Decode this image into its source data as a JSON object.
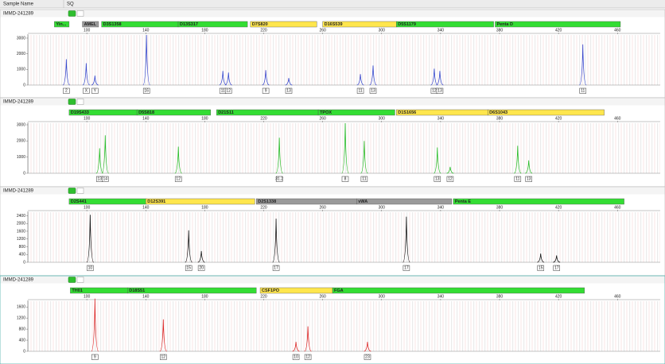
{
  "header": {
    "columns": [
      "Sample Name",
      "SQ"
    ]
  },
  "xlim": [
    60,
    489
  ],
  "xticks": [
    100,
    140,
    180,
    220,
    260,
    300,
    340,
    380,
    420,
    460
  ],
  "panels": [
    {
      "sample": "IMMD-241289",
      "color": "#3344cc",
      "ylim": [
        0,
        3100
      ],
      "yticks": [
        0,
        1000,
        2000,
        3000
      ],
      "markers": [
        {
          "name": "Yin...",
          "start": 78,
          "end": 88,
          "color": "#33dd33"
        },
        {
          "name": "AMEL",
          "start": 97,
          "end": 108,
          "color": "#9a9a9a"
        },
        {
          "name": "D3S1358",
          "start": 110,
          "end": 162,
          "color": "#33dd33"
        },
        {
          "name": "D13S317",
          "start": 162,
          "end": 209,
          "color": "#33dd33"
        },
        {
          "name": "D7S820",
          "start": 211,
          "end": 256,
          "color": "#ffe64d"
        },
        {
          "name": "D16S539",
          "start": 260,
          "end": 310,
          "color": "#ffe64d"
        },
        {
          "name": "D5S1179",
          "start": 310,
          "end": 376,
          "color": "#33dd33"
        },
        {
          "name": "Penta D",
          "start": 377,
          "end": 462,
          "color": "#33dd33"
        }
      ],
      "peaks": [
        {
          "size": 86.1,
          "height": 1650,
          "allele": "2"
        },
        {
          "size": 99.6,
          "height": 1400,
          "allele": "X"
        },
        {
          "size": 105.5,
          "height": 600,
          "allele": "Y"
        },
        {
          "size": 140.5,
          "height": 3200,
          "allele": "16"
        },
        {
          "size": 192.3,
          "height": 900,
          "allele": "11"
        },
        {
          "size": 196.1,
          "height": 800,
          "allele": "12"
        },
        {
          "size": 221.4,
          "height": 950,
          "allele": "9"
        },
        {
          "size": 237,
          "height": 450,
          "allele": "13"
        },
        {
          "size": 285.6,
          "height": 700,
          "allele": "11"
        },
        {
          "size": 294.2,
          "height": 1250,
          "allele": "13"
        },
        {
          "size": 335.7,
          "height": 1050,
          "allele": "12"
        },
        {
          "size": 339.5,
          "height": 900,
          "allele": "13"
        },
        {
          "size": 436.5,
          "height": 2600,
          "allele": "11"
        }
      ]
    },
    {
      "sample": "IMMD-241289",
      "color": "#22bb22",
      "ylim": [
        0,
        3000
      ],
      "yticks": [
        0,
        1000,
        2000,
        3000
      ],
      "markers": [
        {
          "name": "D19S433",
          "start": 88,
          "end": 134,
          "color": "#33dd33"
        },
        {
          "name": "D5S818",
          "start": 134,
          "end": 184,
          "color": "#33dd33"
        },
        {
          "name": "D21S11",
          "start": 188,
          "end": 257,
          "color": "#33dd33"
        },
        {
          "name": "TPOX",
          "start": 257,
          "end": 309,
          "color": "#33dd33"
        },
        {
          "name": "D1S1656",
          "start": 310,
          "end": 372,
          "color": "#ffe64d"
        },
        {
          "name": "D6S1043",
          "start": 372,
          "end": 451,
          "color": "#ffe64d"
        }
      ],
      "peaks": [
        {
          "size": 108.7,
          "height": 1550,
          "allele": "13"
        },
        {
          "size": 112.5,
          "height": 2350,
          "allele": "14"
        },
        {
          "size": 162.1,
          "height": 1650,
          "allele": "12"
        },
        {
          "size": 230.6,
          "height": 2200,
          "allele": "31.2"
        },
        {
          "size": 275.3,
          "height": 3100,
          "allele": "8"
        },
        {
          "size": 288.2,
          "height": 2000,
          "allele": "11"
        },
        {
          "size": 337.8,
          "height": 1600,
          "allele": "13"
        },
        {
          "size": 346.5,
          "height": 400,
          "allele": "12"
        },
        {
          "size": 392.3,
          "height": 1700,
          "allele": "11"
        },
        {
          "size": 399.8,
          "height": 800,
          "allele": "13"
        }
      ]
    },
    {
      "sample": "IMMD-241289",
      "color": "#111111",
      "ylim": [
        0,
        2500
      ],
      "yticks": [
        0,
        400,
        800,
        1200,
        1600,
        2000,
        2400
      ],
      "markers": [
        {
          "name": "D2S441",
          "start": 88,
          "end": 140,
          "color": "#33dd33"
        },
        {
          "name": "D12S391",
          "start": 140,
          "end": 214,
          "color": "#ffe64d"
        },
        {
          "name": "D2S1338",
          "start": 215,
          "end": 283,
          "color": "#9a9a9a"
        },
        {
          "name": "vWA",
          "start": 283,
          "end": 347.5,
          "color": "#9a9a9a"
        },
        {
          "name": "Penta E",
          "start": 348.6,
          "end": 464.5,
          "color": "#33dd33"
        }
      ],
      "peaks": [
        {
          "size": 102.3,
          "height": 2450,
          "allele": "10"
        },
        {
          "size": 169.1,
          "height": 1650,
          "allele": "15"
        },
        {
          "size": 177.7,
          "height": 580,
          "allele": "20"
        },
        {
          "size": 228.4,
          "height": 2250,
          "allele": "17"
        },
        {
          "size": 316.8,
          "height": 2350,
          "allele": "17"
        },
        {
          "size": 407.9,
          "height": 450,
          "allele": "15"
        },
        {
          "size": 418.7,
          "height": 350,
          "allele": "17"
        }
      ]
    },
    {
      "sample": "IMMD-241289",
      "color": "#dd2222",
      "ylim": [
        0,
        1750
      ],
      "yticks": [
        0,
        400,
        800,
        1200,
        1600
      ],
      "markers": [
        {
          "name": "TH01",
          "start": 88.8,
          "end": 127.6,
          "color": "#33dd33"
        },
        {
          "name": "D18S51",
          "start": 127.6,
          "end": 215,
          "color": "#33dd33"
        },
        {
          "name": "CSF1PO",
          "start": 217.6,
          "end": 266.7,
          "color": "#ffe64d"
        },
        {
          "name": "FGA",
          "start": 266.7,
          "end": 437.6,
          "color": "#33dd33"
        }
      ],
      "peaks": [
        {
          "size": 105.5,
          "height": 1900,
          "allele": "9"
        },
        {
          "size": 151.9,
          "height": 1150,
          "allele": "12"
        },
        {
          "size": 241.9,
          "height": 340,
          "allele": "10"
        },
        {
          "size": 250,
          "height": 900,
          "allele": "12"
        },
        {
          "size": 290.4,
          "height": 340,
          "allele": "23"
        }
      ]
    }
  ]
}
